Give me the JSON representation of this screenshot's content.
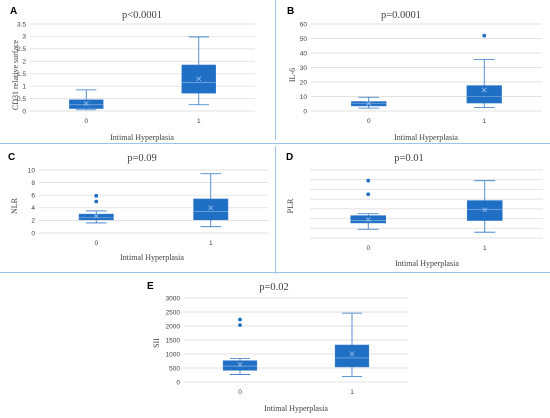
{
  "chart_data": [
    {
      "panel": "A",
      "type": "box",
      "title": "p<0.0001",
      "xlabel": "Intimal Hyperplasia",
      "ylabel": "CD31 relative surface",
      "categories": [
        "0",
        "1"
      ],
      "ylim": [
        0,
        3.5
      ],
      "yticks": [
        "0",
        "0.5",
        "1",
        "1.5",
        "2",
        "2.5",
        "3",
        "3.5"
      ],
      "grid": true,
      "boxes": [
        {
          "category": "0",
          "min": 0.05,
          "q1": 0.1,
          "median": 0.25,
          "q3": 0.45,
          "max": 0.85,
          "mean": 0.3,
          "outliers": []
        },
        {
          "category": "1",
          "min": 0.25,
          "q1": 0.72,
          "median": 1.15,
          "q3": 1.85,
          "max": 2.98,
          "mean": 1.3,
          "outliers": []
        }
      ]
    },
    {
      "panel": "B",
      "type": "box",
      "title": "p=0.0001",
      "xlabel": "Intimal Hyperplasia",
      "ylabel": "IL-6",
      "categories": [
        "0",
        "1"
      ],
      "ylim": [
        0,
        60
      ],
      "yticks": [
        "0",
        "10",
        "20",
        "30",
        "40",
        "50",
        "60"
      ],
      "grid": true,
      "boxes": [
        {
          "category": "0",
          "min": 2,
          "q1": 3.5,
          "median": 5,
          "q3": 6.5,
          "max": 9.5,
          "mean": 5.2,
          "outliers": []
        },
        {
          "category": "1",
          "min": 2.5,
          "q1": 5.5,
          "median": 10,
          "q3": 17.5,
          "max": 35.5,
          "mean": 14.5,
          "outliers": [
            52
          ]
        }
      ]
    },
    {
      "panel": "C",
      "type": "box",
      "title": "p=0.09",
      "xlabel": "Intimal Hyperplasia",
      "ylabel": "NLR",
      "categories": [
        "0",
        "1"
      ],
      "ylim": [
        0,
        10
      ],
      "yticks": [
        "0",
        "2",
        "4",
        "6",
        "8",
        "10"
      ],
      "grid": true,
      "boxes": [
        {
          "category": "0",
          "min": 1.6,
          "q1": 2.1,
          "median": 2.5,
          "q3": 3.0,
          "max": 3.5,
          "mean": 2.7,
          "outliers": [
            5.0,
            5.9
          ]
        },
        {
          "category": "1",
          "min": 1.0,
          "q1": 2.1,
          "median": 3.4,
          "q3": 5.4,
          "max": 9.4,
          "mean": 4.0,
          "outliers": []
        }
      ]
    },
    {
      "panel": "D",
      "type": "box",
      "title": "p=0.01",
      "xlabel": "Intimal Hyperplasia",
      "ylabel": "PLR",
      "categories": [
        "0",
        "1"
      ],
      "ylim": [
        0,
        7
      ],
      "yticks": [],
      "grid": true,
      "boxes": [
        {
          "category": "0",
          "min": 0.9,
          "q1": 1.55,
          "median": 1.8,
          "q3": 2.3,
          "max": 2.5,
          "mean": 1.9,
          "outliers": [
            4.5,
            5.9
          ]
        },
        {
          "category": "1",
          "min": 0.6,
          "q1": 1.8,
          "median": 2.95,
          "q3": 3.85,
          "max": 5.9,
          "mean": 2.9,
          "outliers": []
        }
      ]
    },
    {
      "panel": "E",
      "type": "box",
      "title": "p=0.02",
      "xlabel": "Intimal Hyperplasia",
      "ylabel": "SII",
      "categories": [
        "0",
        "1"
      ],
      "ylim": [
        0,
        3000
      ],
      "yticks": [
        "0",
        "500",
        "1000",
        "1500",
        "2000",
        "2500",
        "3000"
      ],
      "grid": true,
      "boxes": [
        {
          "category": "0",
          "min": 270,
          "q1": 420,
          "median": 570,
          "q3": 760,
          "max": 840,
          "mean": 620,
          "outliers": [
            2030,
            2230
          ]
        },
        {
          "category": "1",
          "min": 200,
          "q1": 540,
          "median": 860,
          "q3": 1320,
          "max": 2460,
          "mean": 1010,
          "outliers": []
        }
      ]
    }
  ],
  "colors": {
    "box_fill": "#1f6fc5",
    "box_stroke": "#2f77c9",
    "grid": "#d9d9d9",
    "divider": "#9dc3e6",
    "text": "#404040"
  }
}
